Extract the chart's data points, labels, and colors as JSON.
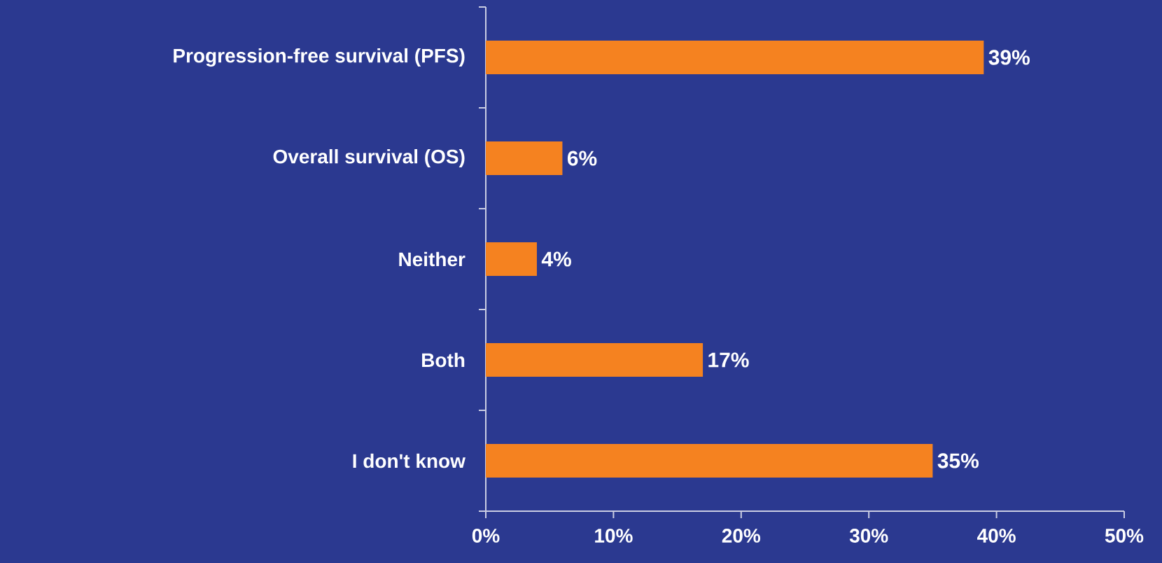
{
  "chart_data": {
    "type": "bar",
    "orientation": "horizontal",
    "categories": [
      "Progression-free survival (PFS)",
      "Overall survival (OS)",
      "Neither",
      "Both",
      "I don't know"
    ],
    "values": [
      39,
      6,
      4,
      17,
      35
    ],
    "value_labels": [
      "39%",
      "6%",
      "4%",
      "17%",
      "35%"
    ],
    "color": "#f58220",
    "xlim": [
      0,
      50
    ],
    "xticks": [
      {
        "value": 0,
        "label": "0%"
      },
      {
        "value": 10,
        "label": "10%"
      },
      {
        "value": 20,
        "label": "20%"
      },
      {
        "value": 30,
        "label": "30%"
      },
      {
        "value": 40,
        "label": "40%"
      },
      {
        "value": 50,
        "label": "50%"
      }
    ],
    "grid": false
  }
}
